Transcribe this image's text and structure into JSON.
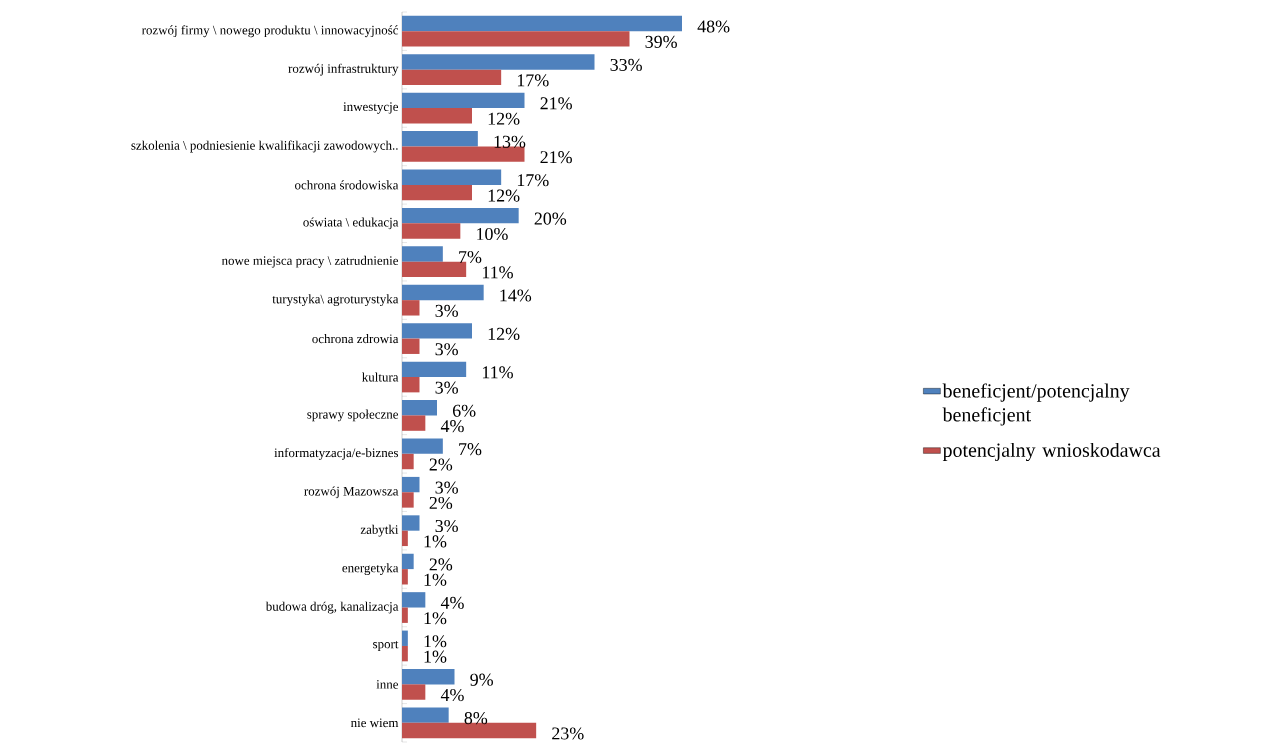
{
  "chart_data": {
    "type": "bar",
    "orientation": "horizontal",
    "categories": [
      "rozwój firmy \\ nowego produktu \\ innowacyjność",
      "rozwój infrastruktury",
      "inwestycje",
      "szkolenia \\ podniesienie kwalifikacji zawodowych..",
      "ochrona środowiska",
      "oświata \\ edukacja",
      "nowe miejsca pracy \\ zatrudnienie",
      "turystyka\\ agroturystyka",
      "ochrona zdrowia",
      "kultura",
      "sprawy społeczne",
      "informatyzacja/e-biznes",
      "rozwój Mazowsza",
      "zabytki",
      "energetyka",
      "budowa dróg, kanalizacja",
      "sport",
      "inne",
      "nie wiem"
    ],
    "series": [
      {
        "name": "beneficjent/potencjalny beneficjent",
        "color": "#4f81bd",
        "values": [
          48,
          33,
          21,
          13,
          17,
          20,
          7,
          14,
          12,
          11,
          6,
          7,
          3,
          3,
          2,
          4,
          1,
          9,
          8
        ],
        "value_labels": [
          "48%",
          "33%",
          "21%",
          "13%",
          "17%",
          "20%",
          "7%",
          "14%",
          "12%",
          "11%",
          "6%",
          "7%",
          "3%",
          "3%",
          "2%",
          "4%",
          "1%",
          "9%",
          "8%"
        ]
      },
      {
        "name": "potencjalny wnioskodawca",
        "color": "#c0504d",
        "values": [
          39,
          17,
          12,
          21,
          12,
          10,
          11,
          3,
          3,
          3,
          4,
          2,
          2,
          1,
          1,
          1,
          1,
          4,
          23
        ],
        "value_labels": [
          "39%",
          "17%",
          "12%",
          "21%",
          "12%",
          "10%",
          "11%",
          "3%",
          "3%",
          "3%",
          "4%",
          "2%",
          "2%",
          "1%",
          "1%",
          "1%",
          "1%",
          "4%",
          "23%"
        ]
      }
    ],
    "legend": "right"
  }
}
